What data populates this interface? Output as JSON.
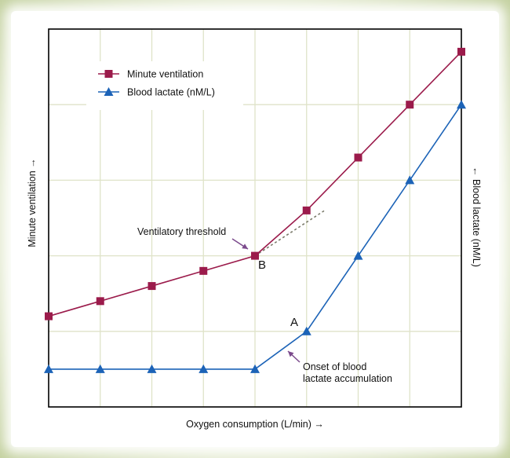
{
  "chart_data": {
    "type": "line",
    "title": "",
    "xlabel": "Oxygen consumption (L/min) →",
    "ylabel_left": "Minute ventilation →",
    "ylabel_right": "← Blood lactate (nM/L)",
    "x": [
      0,
      1,
      2,
      3,
      4,
      5,
      6,
      7,
      8
    ],
    "xlim": [
      0,
      8
    ],
    "ylim": [
      0,
      5
    ],
    "grid": true,
    "legend_position": "top-left",
    "series": [
      {
        "name": "Minute ventilation",
        "color": "#9b1b4b",
        "marker": "square",
        "values": [
          1.2,
          1.4,
          1.6,
          1.8,
          2.0,
          2.6,
          3.3,
          4.0,
          4.7
        ]
      },
      {
        "name": "Blood lactate (nM/L)",
        "color": "#1c63b7",
        "marker": "triangle",
        "values": [
          0.5,
          0.5,
          0.5,
          0.5,
          0.5,
          1.0,
          2.0,
          3.0,
          4.0
        ]
      }
    ],
    "extrapolation": {
      "from": [
        4,
        2.0
      ],
      "to": [
        5.35,
        2.6
      ],
      "color": "#7a7a6a",
      "style": "dashed"
    },
    "annotations": [
      {
        "text": "Ventilatory threshold",
        "point_label": "B"
      },
      {
        "text_lines": [
          "Onset of blood",
          "lactate accumulation"
        ],
        "point_label": "A"
      }
    ],
    "annotation_arrow_color": "#7b4a8c"
  }
}
